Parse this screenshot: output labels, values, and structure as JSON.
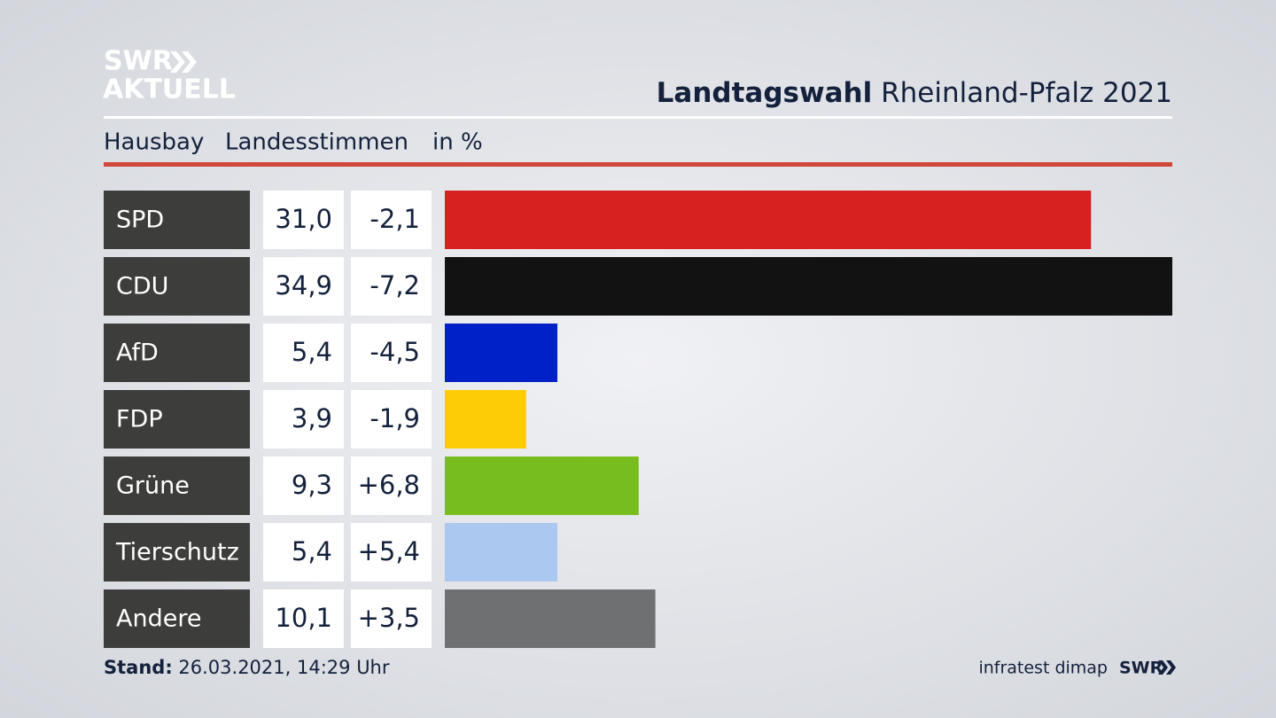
{
  "logo": {
    "line1": "SWR",
    "line2": "AKTUELL"
  },
  "chart_data": {
    "type": "bar",
    "title": {
      "bold": "Landtagswahl",
      "regular": "Rheinland-Pfalz 2021"
    },
    "subtitle": {
      "place": "Hausbay",
      "measure": "Landesstimmen",
      "unit": "in %"
    },
    "categories": [
      "SPD",
      "CDU",
      "AfD",
      "FDP",
      "Grüne",
      "Tierschutz",
      "Andere"
    ],
    "values": [
      31.0,
      34.9,
      5.4,
      3.9,
      9.3,
      5.4,
      10.1
    ],
    "value_labels": [
      "31,0",
      "34,9",
      "5,4",
      "3,9",
      "9,3",
      "5,4",
      "10,1"
    ],
    "changes": [
      "-2,1",
      "-7,2",
      "-4,5",
      "-1,9",
      "+6,8",
      "+5,4",
      "+3,5"
    ],
    "colors": [
      "#d72020",
      "#121212",
      "#0021c8",
      "#fdcc06",
      "#78bd1e",
      "#aac8f0",
      "#6f7072"
    ]
  },
  "footer": {
    "stand_label": "Stand:",
    "stand": "26.03.2021, 14:29 Uhr",
    "source": "infratest dimap",
    "brand": "SWR"
  }
}
